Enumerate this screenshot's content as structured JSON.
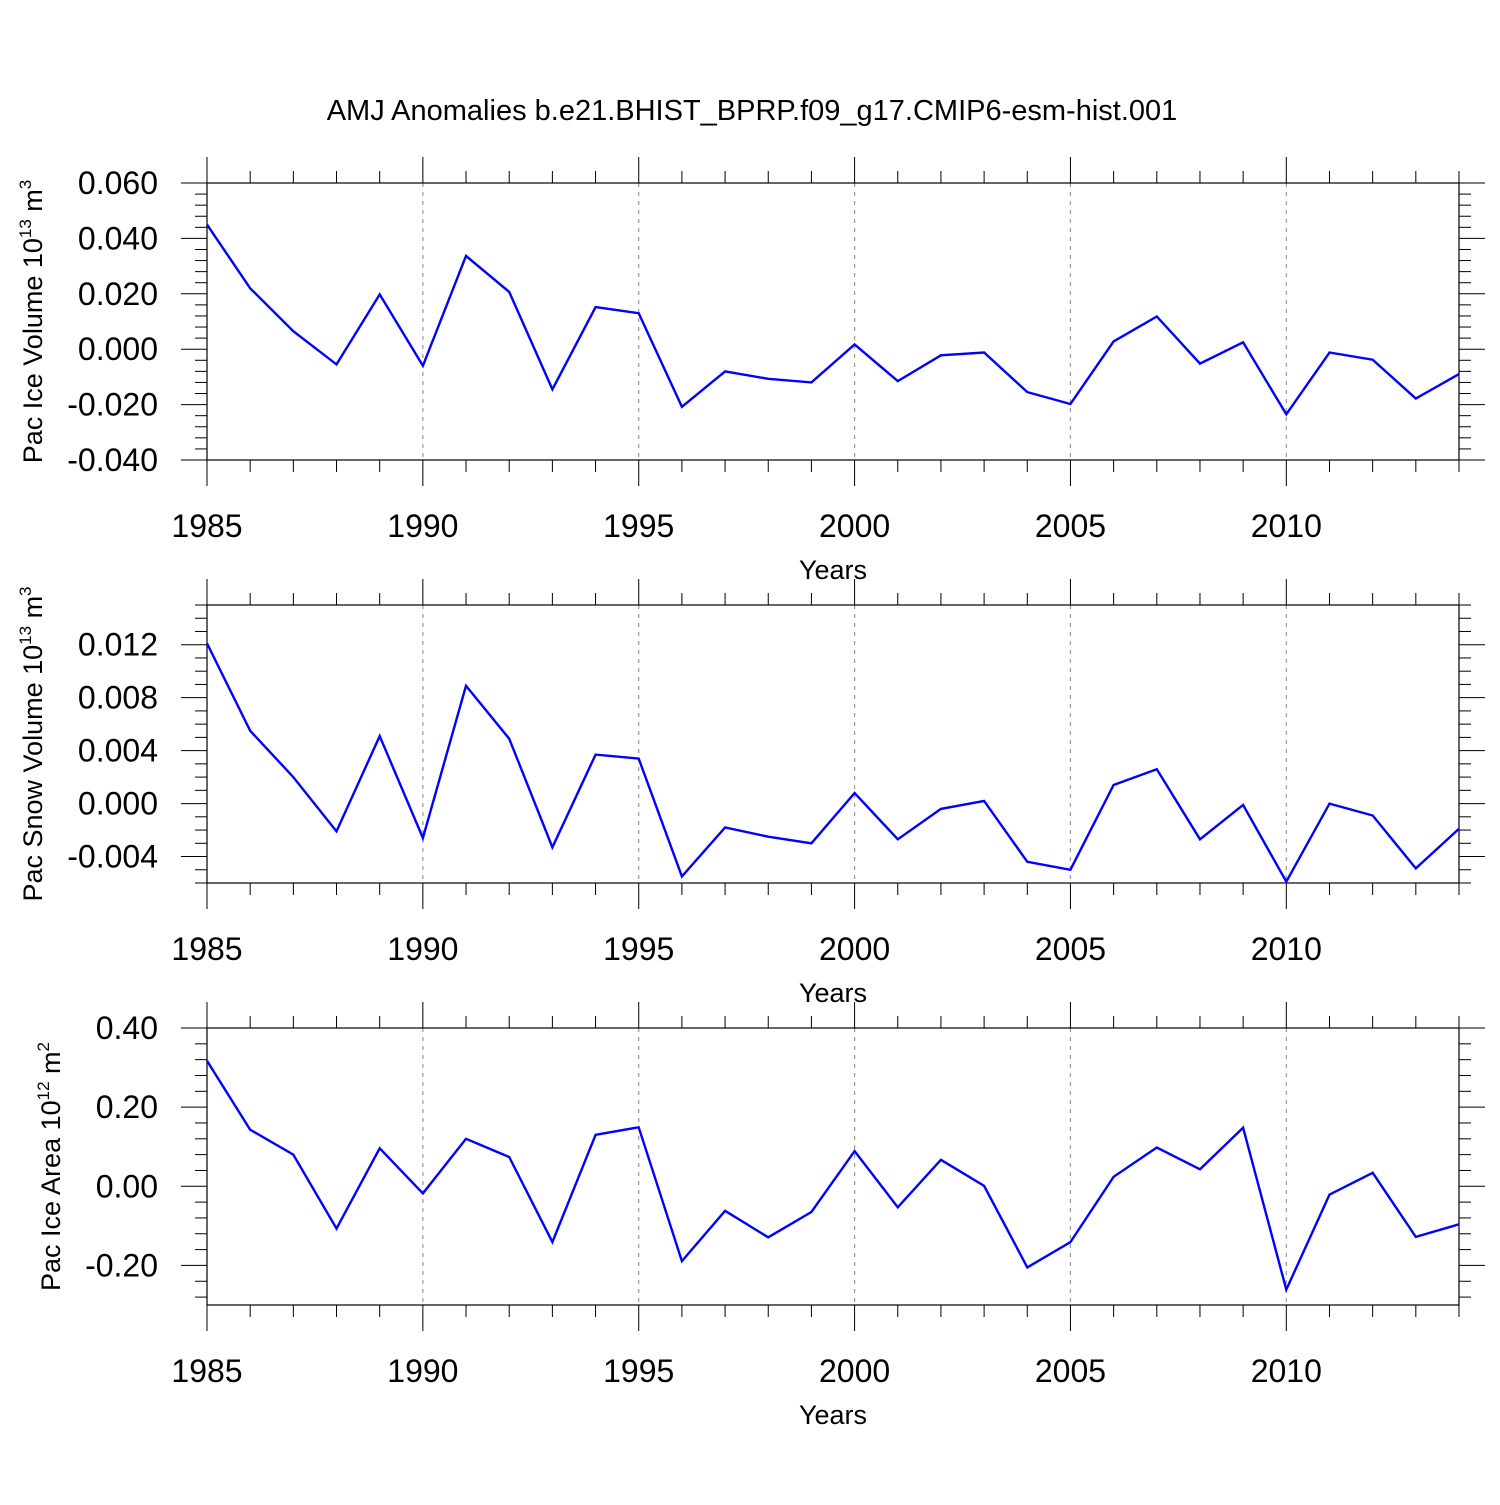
{
  "figure": {
    "title": "AMJ Anomalies b.e21.BHIST_BPRP.f09_g17.CMIP6-esm-hist.001",
    "line_color": "#0000ff",
    "grid_color": "#9a9a9a"
  },
  "chart_data": [
    {
      "type": "line",
      "title": "AMJ Anomalies b.e21.BHIST_BPRP.f09_g17.CMIP6-esm-hist.001",
      "xlabel": "Years",
      "ylabel": "Pac Ice Volume 10",
      "ylabel_sup": "13",
      "ylabel_unit": " m",
      "ylabel_unit_sup": "3",
      "xlim": [
        1985,
        2014
      ],
      "ylim": [
        -0.04,
        0.06
      ],
      "xticks": [
        1985,
        1990,
        1995,
        2000,
        2005,
        2010
      ],
      "xtick_labels": [
        "1985",
        "1990",
        "1995",
        "2000",
        "2005",
        "2010"
      ],
      "yticks": [
        -0.04,
        -0.02,
        0.0,
        0.02,
        0.04,
        0.06
      ],
      "ytick_labels": [
        "-0.040",
        "-0.020",
        "0.000",
        "0.020",
        "0.040",
        "0.060"
      ],
      "yminor_step": 0.004,
      "grid": "vertical dashed at major x ticks",
      "x": [
        1985,
        1986,
        1987,
        1988,
        1989,
        1990,
        1991,
        1992,
        1993,
        1994,
        1995,
        1996,
        1997,
        1998,
        1999,
        2000,
        2001,
        2002,
        2003,
        2004,
        2005,
        2006,
        2007,
        2008,
        2009,
        2010,
        2011,
        2012,
        2013,
        2014
      ],
      "series": [
        {
          "color": "#0000ff",
          "values": [
            0.045,
            0.022,
            0.0065,
            -0.0055,
            0.0198,
            -0.006,
            0.0337,
            0.0207,
            -0.0145,
            0.0152,
            0.013,
            -0.0208,
            -0.008,
            -0.0107,
            -0.012,
            0.0017,
            -0.0115,
            -0.0022,
            -0.0012,
            -0.0155,
            -0.0198,
            0.0028,
            0.0118,
            -0.0052,
            0.0025,
            -0.0235,
            -0.0012,
            -0.0038,
            -0.0178,
            -0.009
          ]
        }
      ]
    },
    {
      "type": "line",
      "xlabel": "Years",
      "ylabel": "Pac Snow Volume 10",
      "ylabel_sup": "13",
      "ylabel_unit": " m",
      "ylabel_unit_sup": "3",
      "xlim": [
        1985,
        2014
      ],
      "ylim": [
        -0.006,
        0.015
      ],
      "xticks": [
        1985,
        1990,
        1995,
        2000,
        2005,
        2010
      ],
      "xtick_labels": [
        "1985",
        "1990",
        "1995",
        "2000",
        "2005",
        "2010"
      ],
      "yticks": [
        -0.004,
        0.0,
        0.004,
        0.008,
        0.012
      ],
      "ytick_labels": [
        "-0.004",
        "0.000",
        "0.004",
        "0.008",
        "0.012"
      ],
      "yminor_step": 0.001,
      "grid": "vertical dashed at major x ticks",
      "x": [
        1985,
        1986,
        1987,
        1988,
        1989,
        1990,
        1991,
        1992,
        1993,
        1994,
        1995,
        1996,
        1997,
        1998,
        1999,
        2000,
        2001,
        2002,
        2003,
        2004,
        2005,
        2006,
        2007,
        2008,
        2009,
        2010,
        2011,
        2012,
        2013,
        2014
      ],
      "series": [
        {
          "color": "#0000ff",
          "values": [
            0.0121,
            0.0055,
            0.002,
            -0.0021,
            0.0051,
            -0.0026,
            0.0089,
            0.0049,
            -0.0033,
            0.0037,
            0.0034,
            -0.0055,
            -0.0018,
            -0.0025,
            -0.003,
            0.0008,
            -0.0027,
            -0.0004,
            0.0002,
            -0.0044,
            -0.005,
            0.0014,
            0.0026,
            -0.0027,
            -0.0001,
            -0.0059,
            0.0,
            -0.0009,
            -0.0049,
            -0.0019
          ]
        }
      ]
    },
    {
      "type": "line",
      "xlabel": "Years",
      "ylabel": "Pac Ice Area 10",
      "ylabel_sup": "12",
      "ylabel_unit": " m",
      "ylabel_unit_sup": "2",
      "xlim": [
        1985,
        2014
      ],
      "ylim": [
        -0.3,
        0.4
      ],
      "xticks": [
        1985,
        1990,
        1995,
        2000,
        2005,
        2010
      ],
      "xtick_labels": [
        "1985",
        "1990",
        "1995",
        "2000",
        "2005",
        "2010"
      ],
      "yticks": [
        -0.2,
        0.0,
        0.2,
        0.4
      ],
      "ytick_labels": [
        "-0.20",
        "0.00",
        "0.20",
        "0.40"
      ],
      "yminor_step": 0.04,
      "grid": "vertical dashed at major x ticks",
      "x": [
        1985,
        1986,
        1987,
        1988,
        1989,
        1990,
        1991,
        1992,
        1993,
        1994,
        1995,
        1996,
        1997,
        1998,
        1999,
        2000,
        2001,
        2002,
        2003,
        2004,
        2005,
        2006,
        2007,
        2008,
        2009,
        2010,
        2011,
        2012,
        2013,
        2014
      ],
      "series": [
        {
          "color": "#0000ff",
          "values": [
            0.317,
            0.143,
            0.08,
            -0.107,
            0.096,
            -0.018,
            0.12,
            0.074,
            -0.141,
            0.13,
            0.149,
            -0.189,
            -0.062,
            -0.129,
            -0.065,
            0.089,
            -0.053,
            0.067,
            0.001,
            -0.205,
            -0.141,
            0.024,
            0.098,
            0.043,
            0.148,
            -0.261,
            -0.021,
            0.034,
            -0.128,
            -0.096
          ]
        }
      ]
    }
  ]
}
